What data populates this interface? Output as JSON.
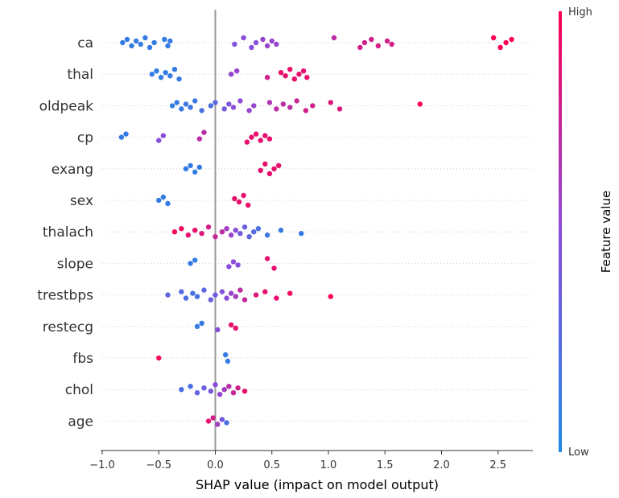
{
  "chart_data": {
    "type": "scatter",
    "subtype": "beeswarm",
    "xlabel": "SHAP value (impact on model output)",
    "xlim": [
      -1.0,
      2.8
    ],
    "xticks": [
      "−1.0",
      "−0.5",
      "0.0",
      "0.5",
      "1.0",
      "1.5",
      "2.0",
      "2.5"
    ],
    "xtick_values": [
      -1.0,
      -0.5,
      0.0,
      0.5,
      1.0,
      1.5,
      2.0,
      2.5
    ],
    "grid": false,
    "colorbar": {
      "title": "Feature value",
      "high_label": "High",
      "low_label": "Low",
      "low_color": "#1e88e5",
      "high_color": "#ff0052"
    },
    "features": [
      {
        "name": "ca",
        "points": [
          [
            -0.82,
            0.1
          ],
          [
            -0.78,
            0.1
          ],
          [
            -0.74,
            0.1
          ],
          [
            -0.7,
            0.1
          ],
          [
            -0.66,
            0.1
          ],
          [
            -0.62,
            0.1
          ],
          [
            -0.58,
            0.1
          ],
          [
            -0.54,
            0.1
          ],
          [
            -0.45,
            0.1
          ],
          [
            -0.42,
            0.1
          ],
          [
            -0.4,
            0.1
          ],
          [
            0.17,
            0.45
          ],
          [
            0.25,
            0.5
          ],
          [
            0.32,
            0.5
          ],
          [
            0.36,
            0.5
          ],
          [
            0.42,
            0.55
          ],
          [
            0.46,
            0.55
          ],
          [
            0.5,
            0.55
          ],
          [
            0.54,
            0.55
          ],
          [
            1.05,
            0.7
          ],
          [
            1.28,
            0.8
          ],
          [
            1.32,
            0.8
          ],
          [
            1.38,
            0.8
          ],
          [
            1.44,
            0.8
          ],
          [
            1.52,
            0.8
          ],
          [
            1.56,
            0.8
          ],
          [
            2.46,
            1.0
          ],
          [
            2.52,
            1.0
          ],
          [
            2.57,
            1.0
          ],
          [
            2.62,
            1.0
          ]
        ]
      },
      {
        "name": "thal",
        "points": [
          [
            -0.56,
            0.1
          ],
          [
            -0.52,
            0.1
          ],
          [
            -0.48,
            0.1
          ],
          [
            -0.44,
            0.1
          ],
          [
            -0.4,
            0.1
          ],
          [
            -0.36,
            0.1
          ],
          [
            -0.32,
            0.1
          ],
          [
            0.14,
            0.55
          ],
          [
            0.19,
            0.55
          ],
          [
            0.46,
            0.8
          ],
          [
            0.58,
            0.9
          ],
          [
            0.62,
            0.9
          ],
          [
            0.66,
            0.9
          ],
          [
            0.7,
            0.9
          ],
          [
            0.74,
            0.9
          ],
          [
            0.78,
            0.9
          ],
          [
            0.81,
            0.9
          ]
        ]
      },
      {
        "name": "oldpeak",
        "points": [
          [
            -0.38,
            0.1
          ],
          [
            -0.34,
            0.1
          ],
          [
            -0.3,
            0.1
          ],
          [
            -0.26,
            0.15
          ],
          [
            -0.22,
            0.15
          ],
          [
            -0.18,
            0.15
          ],
          [
            -0.12,
            0.2
          ],
          [
            -0.04,
            0.2
          ],
          [
            0.0,
            0.3
          ],
          [
            0.08,
            0.4
          ],
          [
            0.12,
            0.45
          ],
          [
            0.16,
            0.5
          ],
          [
            0.22,
            0.5
          ],
          [
            0.3,
            0.55
          ],
          [
            0.34,
            0.55
          ],
          [
            0.48,
            0.65
          ],
          [
            0.54,
            0.7
          ],
          [
            0.6,
            0.7
          ],
          [
            0.66,
            0.7
          ],
          [
            0.72,
            0.75
          ],
          [
            0.8,
            0.8
          ],
          [
            0.86,
            0.8
          ],
          [
            1.02,
            0.85
          ],
          [
            1.1,
            0.85
          ],
          [
            1.81,
            1.0
          ]
        ]
      },
      {
        "name": "cp",
        "points": [
          [
            -0.83,
            0.1
          ],
          [
            -0.79,
            0.1
          ],
          [
            -0.5,
            0.5
          ],
          [
            -0.46,
            0.5
          ],
          [
            -0.14,
            0.7
          ],
          [
            -0.1,
            0.7
          ],
          [
            0.28,
            0.9
          ],
          [
            0.32,
            0.9
          ],
          [
            0.36,
            0.9
          ],
          [
            0.4,
            0.9
          ],
          [
            0.44,
            0.9
          ],
          [
            0.48,
            0.9
          ]
        ]
      },
      {
        "name": "exang",
        "points": [
          [
            -0.26,
            0.1
          ],
          [
            -0.22,
            0.1
          ],
          [
            -0.18,
            0.1
          ],
          [
            -0.14,
            0.1
          ],
          [
            0.4,
            0.9
          ],
          [
            0.44,
            0.9
          ],
          [
            0.48,
            0.9
          ],
          [
            0.52,
            0.9
          ],
          [
            0.56,
            0.9
          ]
        ]
      },
      {
        "name": "sex",
        "points": [
          [
            -0.5,
            0.1
          ],
          [
            -0.46,
            0.1
          ],
          [
            -0.42,
            0.1
          ],
          [
            0.17,
            0.9
          ],
          [
            0.21,
            0.9
          ],
          [
            0.25,
            0.9
          ],
          [
            0.29,
            0.9
          ]
        ]
      },
      {
        "name": "thalach",
        "points": [
          [
            -0.36,
            0.95
          ],
          [
            -0.3,
            0.95
          ],
          [
            -0.24,
            0.9
          ],
          [
            -0.18,
            0.9
          ],
          [
            -0.12,
            0.85
          ],
          [
            -0.06,
            0.8
          ],
          [
            0.0,
            0.75
          ],
          [
            0.06,
            0.7
          ],
          [
            0.1,
            0.6
          ],
          [
            0.14,
            0.55
          ],
          [
            0.18,
            0.5
          ],
          [
            0.22,
            0.4
          ],
          [
            0.26,
            0.35
          ],
          [
            0.3,
            0.3
          ],
          [
            0.34,
            0.25
          ],
          [
            0.38,
            0.2
          ],
          [
            0.46,
            0.15
          ],
          [
            0.58,
            0.1
          ],
          [
            0.76,
            0.1
          ]
        ]
      },
      {
        "name": "slope",
        "points": [
          [
            -0.22,
            0.1
          ],
          [
            -0.18,
            0.1
          ],
          [
            0.12,
            0.5
          ],
          [
            0.16,
            0.5
          ],
          [
            0.2,
            0.5
          ],
          [
            0.46,
            0.9
          ],
          [
            0.52,
            0.9
          ]
        ]
      },
      {
        "name": "trestbps",
        "points": [
          [
            -0.42,
            0.3
          ],
          [
            -0.3,
            0.25
          ],
          [
            -0.26,
            0.2
          ],
          [
            -0.2,
            0.2
          ],
          [
            -0.16,
            0.2
          ],
          [
            -0.1,
            0.3
          ],
          [
            -0.04,
            0.35
          ],
          [
            0.0,
            0.4
          ],
          [
            0.06,
            0.45
          ],
          [
            0.1,
            0.5
          ],
          [
            0.14,
            0.55
          ],
          [
            0.18,
            0.6
          ],
          [
            0.22,
            0.7
          ],
          [
            0.26,
            0.75
          ],
          [
            0.36,
            0.85
          ],
          [
            0.44,
            0.9
          ],
          [
            0.54,
            0.9
          ],
          [
            0.66,
            0.95
          ],
          [
            1.02,
            1.0
          ]
        ]
      },
      {
        "name": "restecg",
        "points": [
          [
            -0.16,
            0.1
          ],
          [
            -0.12,
            0.1
          ],
          [
            0.02,
            0.5
          ],
          [
            0.14,
            0.9
          ],
          [
            0.18,
            0.9
          ]
        ]
      },
      {
        "name": "fbs",
        "points": [
          [
            -0.5,
            0.95
          ],
          [
            0.09,
            0.1
          ],
          [
            0.11,
            0.1
          ]
        ]
      },
      {
        "name": "chol",
        "points": [
          [
            -0.3,
            0.2
          ],
          [
            -0.22,
            0.2
          ],
          [
            -0.16,
            0.3
          ],
          [
            -0.1,
            0.35
          ],
          [
            -0.04,
            0.4
          ],
          [
            0.0,
            0.5
          ],
          [
            0.04,
            0.55
          ],
          [
            0.08,
            0.6
          ],
          [
            0.12,
            0.7
          ],
          [
            0.16,
            0.75
          ],
          [
            0.2,
            0.8
          ],
          [
            0.26,
            0.9
          ]
        ]
      },
      {
        "name": "age",
        "points": [
          [
            -0.06,
            0.9
          ],
          [
            -0.02,
            0.8
          ],
          [
            0.02,
            0.6
          ],
          [
            0.06,
            0.4
          ],
          [
            0.1,
            0.2
          ]
        ]
      }
    ]
  }
}
